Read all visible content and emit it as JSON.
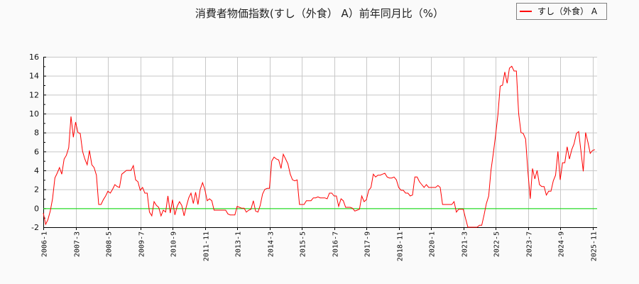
{
  "chart_data": {
    "type": "line",
    "title": "消費者物価指数(すし（外食） A）前年同月比（%）",
    "xlabel": "",
    "ylabel": "",
    "ylim": [
      -2,
      16
    ],
    "yticks": [
      -2,
      0,
      2,
      4,
      6,
      8,
      10,
      12,
      14,
      16
    ],
    "xticks": [
      "2006-1",
      "2007-3",
      "2008-5",
      "2009-7",
      "2010-9",
      "2011-11",
      "2013-1",
      "2014-3",
      "2015-5",
      "2016-7",
      "2017-9",
      "2018-11",
      "2020-1",
      "2021-3",
      "2022-5",
      "2023-7",
      "2024-9",
      "2025-11"
    ],
    "x_start": "2006-1",
    "x_frequency": "monthly",
    "grid": true,
    "legend_position": "top-right",
    "zero_line_color": "#00dd00",
    "series": [
      {
        "name": "すし（外食） A",
        "color": "#ff0000",
        "values": [
          -0.5,
          -1.7,
          -1.2,
          -0.3,
          1.0,
          3.2,
          3.7,
          4.3,
          3.6,
          5.2,
          5.6,
          6.4,
          9.7,
          7.5,
          9.1,
          8.0,
          7.9,
          6.0,
          5.2,
          4.6,
          6.1,
          4.6,
          4.3,
          3.5,
          0.4,
          0.4,
          0.9,
          1.3,
          1.8,
          1.6,
          2.0,
          2.5,
          2.3,
          2.2,
          3.6,
          3.8,
          4.0,
          4.0,
          4.0,
          4.5,
          3.0,
          2.8,
          1.9,
          2.2,
          1.6,
          1.6,
          -0.4,
          -0.8,
          0.7,
          0.3,
          0.1,
          -0.8,
          -0.2,
          -0.4,
          1.3,
          -0.5,
          0.9,
          -0.7,
          0.2,
          0.7,
          0.3,
          -0.8,
          0.2,
          1.1,
          1.6,
          0.5,
          1.7,
          0.4,
          2.0,
          2.7,
          2.0,
          0.8,
          1.0,
          0.8,
          -0.2,
          -0.2,
          -0.2,
          -0.2,
          -0.2,
          -0.2,
          -0.6,
          -0.7,
          -0.7,
          -0.7,
          0.2,
          0.1,
          0.0,
          0.0,
          -0.4,
          -0.2,
          -0.1,
          0.8,
          -0.3,
          -0.4,
          0.3,
          1.5,
          2.0,
          2.1,
          2.1,
          5.0,
          5.4,
          5.2,
          5.1,
          4.2,
          5.7,
          5.2,
          4.7,
          3.6,
          3.0,
          2.9,
          3.0,
          0.4,
          0.4,
          0.4,
          0.8,
          0.8,
          0.8,
          1.1,
          1.1,
          1.2,
          1.1,
          1.1,
          1.1,
          1.0,
          1.6,
          1.6,
          1.3,
          1.3,
          0.2,
          1.0,
          0.8,
          0.1,
          0.1,
          0.1,
          0.0,
          -0.3,
          -0.2,
          -0.1,
          1.3,
          0.7,
          0.9,
          1.9,
          2.2,
          3.6,
          3.3,
          3.5,
          3.5,
          3.6,
          3.7,
          3.3,
          3.2,
          3.2,
          3.3,
          3.0,
          2.2,
          1.9,
          1.9,
          1.6,
          1.6,
          1.3,
          1.4,
          3.3,
          3.3,
          2.8,
          2.5,
          2.2,
          2.5,
          2.2,
          2.2,
          2.2,
          2.2,
          2.4,
          2.2,
          0.4,
          0.4,
          0.4,
          0.4,
          0.4,
          0.7,
          -0.4,
          -0.1,
          -0.1,
          -0.1,
          -1.1,
          -2.0,
          -2.0,
          -2.0,
          -2.0,
          -2.0,
          -1.8,
          -1.8,
          -0.7,
          0.5,
          1.3,
          4.0,
          5.8,
          7.7,
          9.9,
          12.9,
          13.0,
          14.4,
          13.2,
          14.8,
          15.0,
          14.5,
          14.5,
          10.0,
          8.0,
          7.9,
          7.3,
          3.9,
          1.0,
          4.2,
          3.1,
          4.0,
          2.5,
          2.3,
          2.3,
          1.4,
          1.8,
          1.8,
          2.9,
          3.5,
          6.0,
          3.0,
          4.8,
          4.8,
          6.5,
          5.2,
          6.2,
          6.8,
          7.9,
          8.1,
          6.0,
          3.9,
          8.0,
          7.0,
          5.8,
          6.1,
          6.2
        ]
      }
    ]
  }
}
